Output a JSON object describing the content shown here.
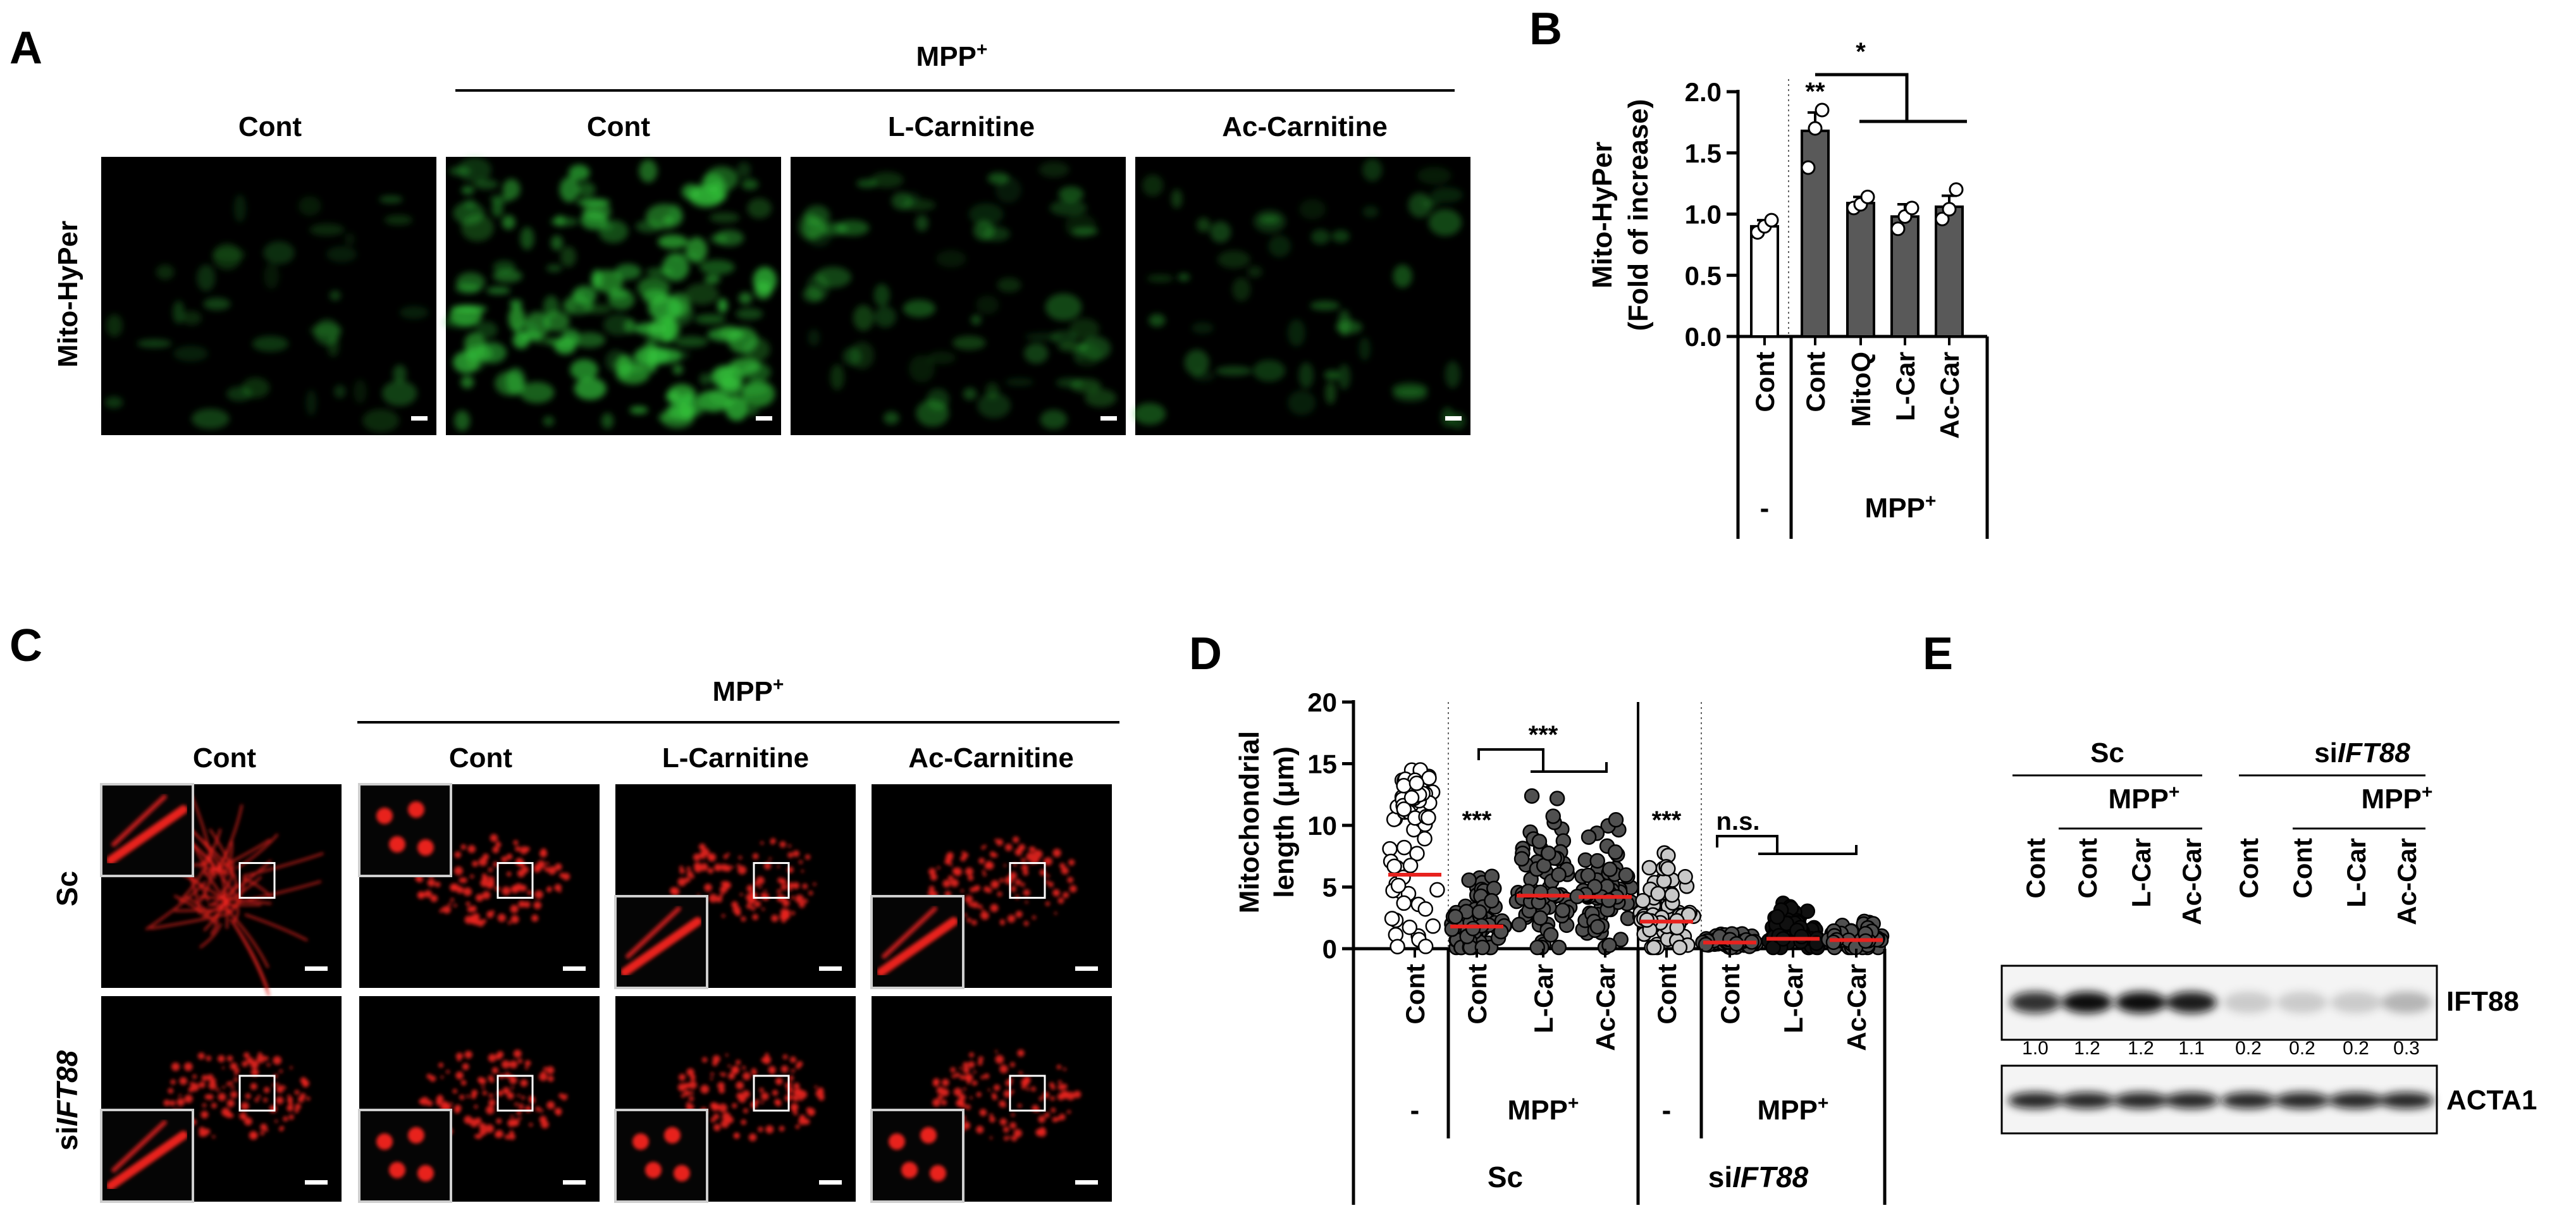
{
  "panels": {
    "A": {
      "letter": "A",
      "treatment": "MPP",
      "treatment_sup": "+",
      "columns": [
        "Cont",
        "Cont",
        "L-Carnitine",
        "Ac-Carnitine"
      ],
      "row_label": "Mito-HyPer",
      "image_color": "#33c23a"
    },
    "B": {
      "letter": "B",
      "significance": [
        "**",
        "*"
      ],
      "group_labels": [
        "-",
        "MPP+"
      ],
      "chart_data": {
        "type": "bar",
        "ylabel": "Mito-HyPer (Fold of increase)",
        "ylabel_lines": [
          "Mito-HyPer",
          "(Fold of increase)"
        ],
        "ylim": [
          0,
          2.0
        ],
        "yticks": [
          "0.0",
          "0.5",
          "1.0",
          "1.5",
          "2.0"
        ],
        "categories": [
          "Cont",
          "Cont",
          "MitoQ",
          "L-Car",
          "Ac-Car"
        ],
        "values": [
          0.9,
          1.68,
          1.09,
          0.98,
          1.06
        ],
        "errors": [
          0.05,
          0.15,
          0.05,
          0.1,
          0.09
        ],
        "points": [
          [
            0.85,
            0.9,
            0.95
          ],
          [
            1.38,
            1.7,
            1.85
          ],
          [
            1.05,
            1.08,
            1.14
          ],
          [
            0.88,
            0.98,
            1.05
          ],
          [
            0.96,
            1.04,
            1.2
          ]
        ],
        "bar_colors": [
          "#ffffff",
          "#595959",
          "#595959",
          "#595959",
          "#595959"
        ]
      }
    },
    "C": {
      "letter": "C",
      "treatment": "MPP",
      "treatment_sup": "+",
      "columns": [
        "Cont",
        "Cont",
        "L-Carnitine",
        "Ac-Carnitine"
      ],
      "row_labels": [
        "Sc",
        "si",
        "IFT88"
      ],
      "image_color": "#e8221e"
    },
    "D": {
      "letter": "D",
      "significance": [
        "***",
        "***",
        "***",
        "n.s."
      ],
      "group_labels": [
        "-",
        "MPP+",
        "-",
        "MPP+"
      ],
      "cohorts": [
        "Sc",
        "si",
        "IFT88"
      ],
      "chart_data": {
        "type": "scatter",
        "ylabel": "Mitochondrial length (μm)",
        "ylabel_lines": [
          "Mitochondrial",
          "length (μm)"
        ],
        "ylim": [
          0,
          20
        ],
        "yticks": [
          "0",
          "5",
          "10",
          "15",
          "20"
        ],
        "categories": [
          "Cont",
          "Cont",
          "L-Car",
          "Ac-Car",
          "Cont",
          "Cont",
          "L-Car",
          "Ac-Car"
        ],
        "medians": [
          6.0,
          1.8,
          4.3,
          4.2,
          2.2,
          0.5,
          0.8,
          0.7
        ],
        "spread_max": [
          14.5,
          7.0,
          12.5,
          11.0,
          8.5,
          1.2,
          4.5,
          2.5
        ],
        "point_fill": [
          "#ffffff",
          "#505050",
          "#505050",
          "#505050",
          "#c8c8c8",
          "#505050",
          "#101010",
          "#505050"
        ]
      }
    },
    "E": {
      "letter": "E",
      "groups": [
        "Sc",
        "si",
        "IFT88"
      ],
      "treatment": "MPP",
      "treatment_sup": "+",
      "lanes": [
        "Cont",
        "Cont",
        "L-Car",
        "Ac-Car",
        "Cont",
        "Cont",
        "L-Car",
        "Ac-Car"
      ],
      "bands": [
        {
          "label": "IFT88",
          "intensities": [
            1.0,
            1.2,
            1.2,
            1.1,
            0.2,
            0.2,
            0.2,
            0.3
          ]
        },
        {
          "label": "ACTA1",
          "intensities": [
            1,
            1,
            1,
            1,
            1,
            1,
            1,
            1
          ]
        }
      ],
      "quant_labels": [
        "1.0",
        "1.2",
        "1.2",
        "1.1",
        "0.2",
        "0.2",
        "0.2",
        "0.3"
      ]
    }
  }
}
